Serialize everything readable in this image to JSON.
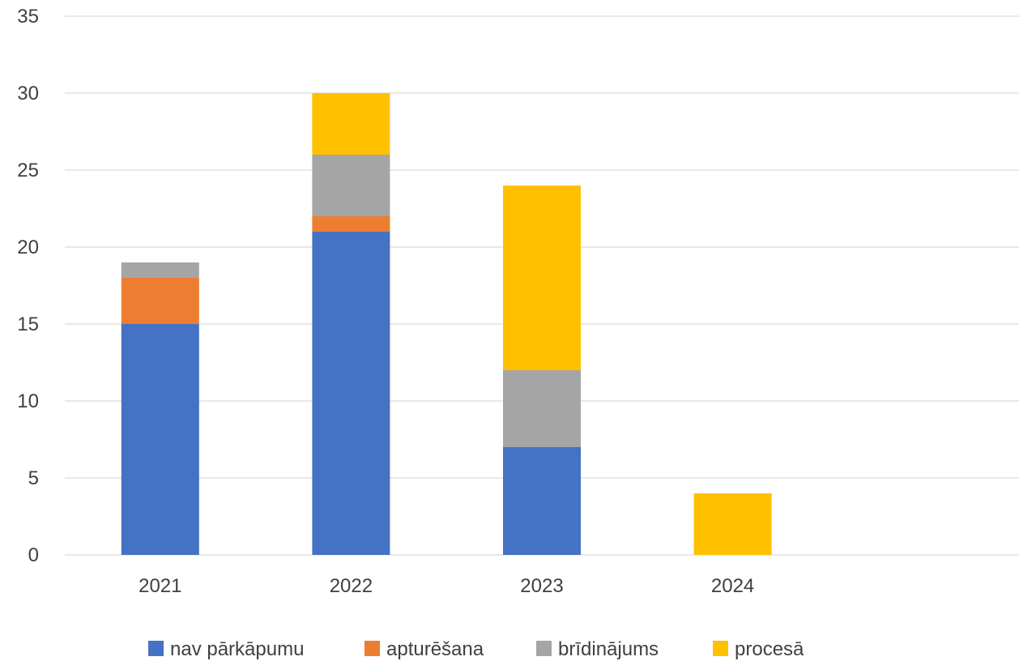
{
  "chart_data": {
    "type": "bar",
    "stacked": true,
    "categories": [
      "2021",
      "2022",
      "2023",
      "2024",
      ""
    ],
    "series": [
      {
        "name": "nav pārkāpumu",
        "color": "#4472C4",
        "values": [
          15,
          21,
          7,
          0,
          0
        ]
      },
      {
        "name": "apturēšana",
        "color": "#ED7D31",
        "values": [
          3,
          1,
          0,
          0,
          0
        ]
      },
      {
        "name": "brīdinājums",
        "color": "#A5A5A5",
        "values": [
          1,
          4,
          5,
          0,
          0
        ]
      },
      {
        "name": "procesā",
        "color": "#FFC000",
        "values": [
          0,
          4,
          12,
          4,
          0
        ]
      }
    ],
    "ylim": [
      0,
      35
    ],
    "yticks": [
      0,
      5,
      10,
      15,
      20,
      25,
      30,
      35
    ],
    "grid": true,
    "legend_position": "bottom"
  }
}
